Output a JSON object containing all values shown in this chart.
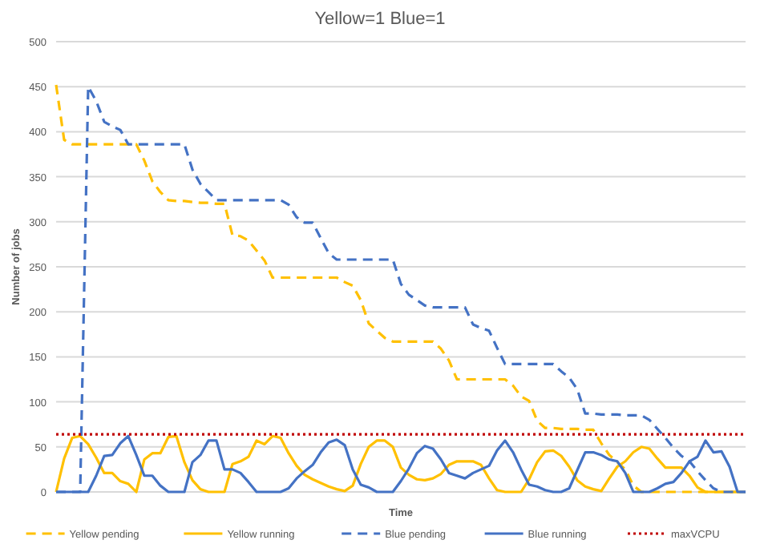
{
  "chart_data": {
    "type": "line",
    "title": "Yellow=1 Blue=1",
    "xlabel": "Time",
    "ylabel": "Number of jobs",
    "ylim": [
      0,
      500
    ],
    "yticks": [
      0,
      50,
      100,
      150,
      200,
      250,
      300,
      350,
      400,
      450,
      500
    ],
    "grid": "y",
    "legend": "bottom",
    "marker": "none",
    "categories": [
      null,
      null,
      null,
      null,
      null,
      null,
      null,
      null,
      null,
      null,
      null,
      null,
      null,
      null,
      null,
      null,
      null,
      null,
      null,
      null,
      null,
      null,
      null,
      null,
      null,
      null,
      null,
      null,
      null,
      null,
      null,
      null,
      null,
      null,
      null,
      null,
      null,
      null,
      null,
      null,
      null,
      null,
      null,
      null,
      null,
      null,
      null,
      null,
      null,
      null,
      null,
      null,
      null,
      null,
      null,
      null,
      null,
      null,
      null,
      null,
      null,
      null,
      null,
      null,
      null,
      null,
      null,
      null,
      null,
      null,
      null,
      null,
      null,
      null,
      null,
      null,
      null,
      null,
      null,
      null,
      null,
      null,
      null,
      null,
      null,
      null,
      null
    ],
    "series": [
      {
        "name": "Yellow pending",
        "color": "#ffc000",
        "line_style": "dashed",
        "values": [
          452,
          391,
          386,
          386,
          386,
          386,
          386,
          386,
          386,
          386,
          386,
          368,
          345,
          333,
          324,
          323,
          323,
          322,
          321,
          321,
          320,
          320,
          285,
          284,
          279,
          268,
          257,
          238,
          238,
          238,
          238,
          238,
          238,
          238,
          238,
          238,
          233,
          229,
          213,
          187,
          179,
          171,
          167,
          167,
          167,
          167,
          167,
          167,
          159,
          146,
          125,
          125,
          125,
          125,
          125,
          125,
          125,
          118,
          106,
          101,
          79,
          71,
          71,
          70,
          70,
          70,
          69,
          69,
          54,
          41,
          33,
          25,
          7,
          0,
          0,
          0,
          0,
          0,
          0,
          0,
          0,
          0,
          0,
          0,
          0,
          0,
          0
        ]
      },
      {
        "name": "Yellow running",
        "color": "#ffc000",
        "line_style": "solid",
        "values": [
          0,
          37,
          60,
          62,
          53,
          38,
          21,
          21,
          12,
          9,
          0,
          36,
          43,
          43,
          61,
          62,
          33,
          13,
          3,
          0,
          0,
          0,
          31,
          34,
          39,
          57,
          53,
          62,
          60,
          43,
          29,
          19,
          14,
          10,
          6,
          3,
          1,
          7,
          31,
          50,
          57,
          57,
          50,
          27,
          19,
          14,
          13,
          15,
          20,
          30,
          34,
          34,
          34,
          30,
          15,
          2,
          0,
          0,
          0,
          14,
          33,
          45,
          46,
          40,
          28,
          13,
          6,
          3,
          1,
          15,
          28,
          34,
          44,
          50,
          48,
          37,
          27,
          27,
          27,
          18,
          5,
          0,
          0,
          0,
          0,
          0,
          0
        ]
      },
      {
        "name": "Blue pending",
        "color": "#4472c4",
        "line_style": "dashed",
        "values": [
          0,
          0,
          0,
          0,
          450,
          434,
          411,
          406,
          402,
          386,
          386,
          386,
          386,
          386,
          386,
          386,
          386,
          358,
          342,
          333,
          324,
          324,
          324,
          324,
          324,
          324,
          324,
          324,
          324,
          319,
          305,
          299,
          299,
          282,
          265,
          258,
          258,
          258,
          258,
          258,
          258,
          258,
          258,
          231,
          219,
          213,
          207,
          205,
          205,
          205,
          205,
          205,
          186,
          182,
          179,
          160,
          142,
          142,
          142,
          142,
          142,
          142,
          142,
          134,
          127,
          114,
          87,
          87,
          86,
          86,
          86,
          85,
          85,
          85,
          80,
          70,
          60,
          49,
          40,
          34,
          23,
          13,
          4,
          0,
          0,
          0,
          0
        ]
      },
      {
        "name": "Blue running",
        "color": "#4472c4",
        "line_style": "solid",
        "values": [
          0,
          0,
          0,
          0,
          0,
          18,
          40,
          41,
          54,
          62,
          41,
          18,
          18,
          7,
          0,
          0,
          0,
          33,
          41,
          57,
          57,
          25,
          25,
          21,
          11,
          0,
          0,
          0,
          0,
          4,
          15,
          23,
          30,
          44,
          55,
          58,
          52,
          25,
          8,
          5,
          0,
          0,
          0,
          12,
          26,
          43,
          51,
          48,
          36,
          21,
          18,
          15,
          21,
          25,
          29,
          46,
          57,
          44,
          25,
          8,
          6,
          2,
          0,
          0,
          4,
          24,
          44,
          44,
          41,
          36,
          34,
          21,
          0,
          0,
          0,
          4,
          9,
          11,
          21,
          34,
          39,
          57,
          44,
          45,
          28,
          0,
          0
        ]
      },
      {
        "name": "maxVCPU",
        "color": "#c00000",
        "line_style": "dotted",
        "values": [
          64,
          64,
          64,
          64,
          64,
          64,
          64,
          64,
          64,
          64,
          64,
          64,
          64,
          64,
          64,
          64,
          64,
          64,
          64,
          64,
          64,
          64,
          64,
          64,
          64,
          64,
          64,
          64,
          64,
          64,
          64,
          64,
          64,
          64,
          64,
          64,
          64,
          64,
          64,
          64,
          64,
          64,
          64,
          64,
          64,
          64,
          64,
          64,
          64,
          64,
          64,
          64,
          64,
          64,
          64,
          64,
          64,
          64,
          64,
          64,
          64,
          64,
          64,
          64,
          64,
          64,
          64,
          64,
          64,
          64,
          64,
          64,
          64,
          64,
          64,
          64,
          64,
          64,
          64,
          64,
          64,
          64,
          64,
          64,
          64,
          64,
          64
        ]
      }
    ]
  }
}
